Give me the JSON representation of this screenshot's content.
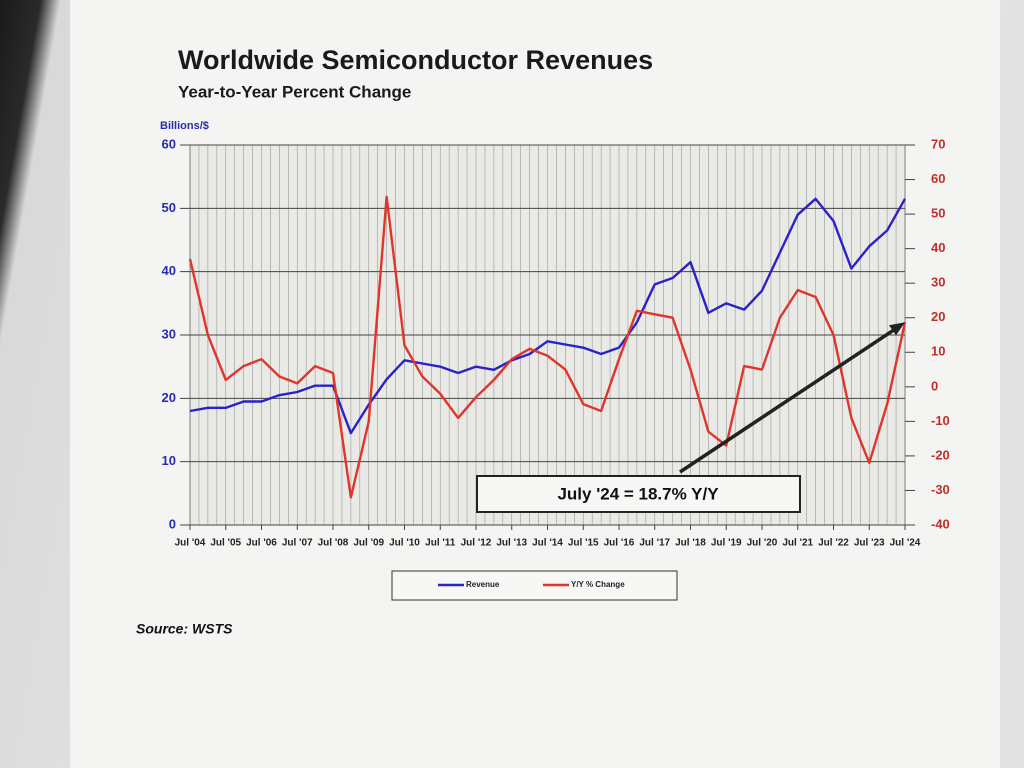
{
  "chart_data": {
    "type": "line",
    "title": "Worldwide Semiconductor Revenues",
    "subtitle": "Year-to-Year Percent Change",
    "y_label": "Billions/$",
    "annotation": "July '24 = 18.7% Y/Y",
    "source": "Source: WSTS",
    "x": [
      2004.5,
      2005.0,
      2005.5,
      2006.0,
      2006.5,
      2007.0,
      2007.5,
      2008.0,
      2008.5,
      2009.0,
      2009.5,
      2010.0,
      2010.5,
      2011.0,
      2011.5,
      2012.0,
      2012.5,
      2013.0,
      2013.5,
      2014.0,
      2014.5,
      2015.0,
      2015.5,
      2016.0,
      2016.5,
      2017.0,
      2017.5,
      2018.0,
      2018.5,
      2019.0,
      2019.5,
      2020.0,
      2020.5,
      2021.0,
      2021.5,
      2022.0,
      2022.5,
      2023.0,
      2023.5,
      2024.0,
      2024.5
    ],
    "series": [
      {
        "name": "Revenue",
        "color": "#2a22c8",
        "axis": "y",
        "values": [
          18,
          18.5,
          18.5,
          19.5,
          19.5,
          20.5,
          21,
          22,
          22,
          14.5,
          19,
          23,
          26,
          25.5,
          25,
          24,
          25,
          24.5,
          26,
          27,
          29,
          28.5,
          28,
          27,
          28,
          32,
          38,
          39,
          41.5,
          33.5,
          35,
          34,
          37,
          43,
          49,
          51.5,
          48,
          40.5,
          44,
          46.5,
          51.5
        ]
      },
      {
        "name": "Y/Y % Change",
        "color": "#e0352b",
        "axis": "y2",
        "values": [
          37,
          15,
          2,
          6,
          8,
          3,
          1,
          6,
          4,
          -32,
          -10,
          55,
          12,
          3,
          -2,
          -9,
          -3,
          2,
          8,
          11,
          9,
          5,
          -5,
          -7,
          8,
          22,
          21,
          20,
          5,
          -13,
          -17,
          6,
          5,
          20,
          28,
          26,
          15,
          -9,
          -22,
          -5,
          18.7
        ]
      }
    ],
    "xlim": [
      2004.5,
      2024.5
    ],
    "xticks": [
      {
        "value": 2004.5,
        "label": "Jul '04"
      },
      {
        "value": 2005.5,
        "label": "Jul '05"
      },
      {
        "value": 2006.5,
        "label": "Jul '06"
      },
      {
        "value": 2007.5,
        "label": "Jul '07"
      },
      {
        "value": 2008.5,
        "label": "Jul '08"
      },
      {
        "value": 2009.5,
        "label": "Jul '09"
      },
      {
        "value": 2010.5,
        "label": "Jul '10"
      },
      {
        "value": 2011.5,
        "label": "Jul '11"
      },
      {
        "value": 2012.5,
        "label": "Jul '12"
      },
      {
        "value": 2013.5,
        "label": "Jul '13"
      },
      {
        "value": 2014.5,
        "label": "Jul '14"
      },
      {
        "value": 2015.5,
        "label": "Jul '15"
      },
      {
        "value": 2016.5,
        "label": "Jul '16"
      },
      {
        "value": 2017.5,
        "label": "Jul '17"
      },
      {
        "value": 2018.5,
        "label": "Jul '18"
      },
      {
        "value": 2019.5,
        "label": "Jul '19"
      },
      {
        "value": 2020.5,
        "label": "Jul '20"
      },
      {
        "value": 2021.5,
        "label": "Jul '21"
      },
      {
        "value": 2022.5,
        "label": "Jul '22"
      },
      {
        "value": 2023.5,
        "label": "Jul '23"
      },
      {
        "value": 2024.5,
        "label": "Jul '24"
      }
    ],
    "ylim": [
      0,
      60
    ],
    "yticks": [
      0,
      10,
      20,
      30,
      40,
      50,
      60
    ],
    "y2lim": [
      -40,
      70
    ],
    "y2ticks": [
      -40,
      -30,
      -20,
      -10,
      0,
      10,
      20,
      30,
      40,
      50,
      60,
      70
    ],
    "grid": true
  }
}
